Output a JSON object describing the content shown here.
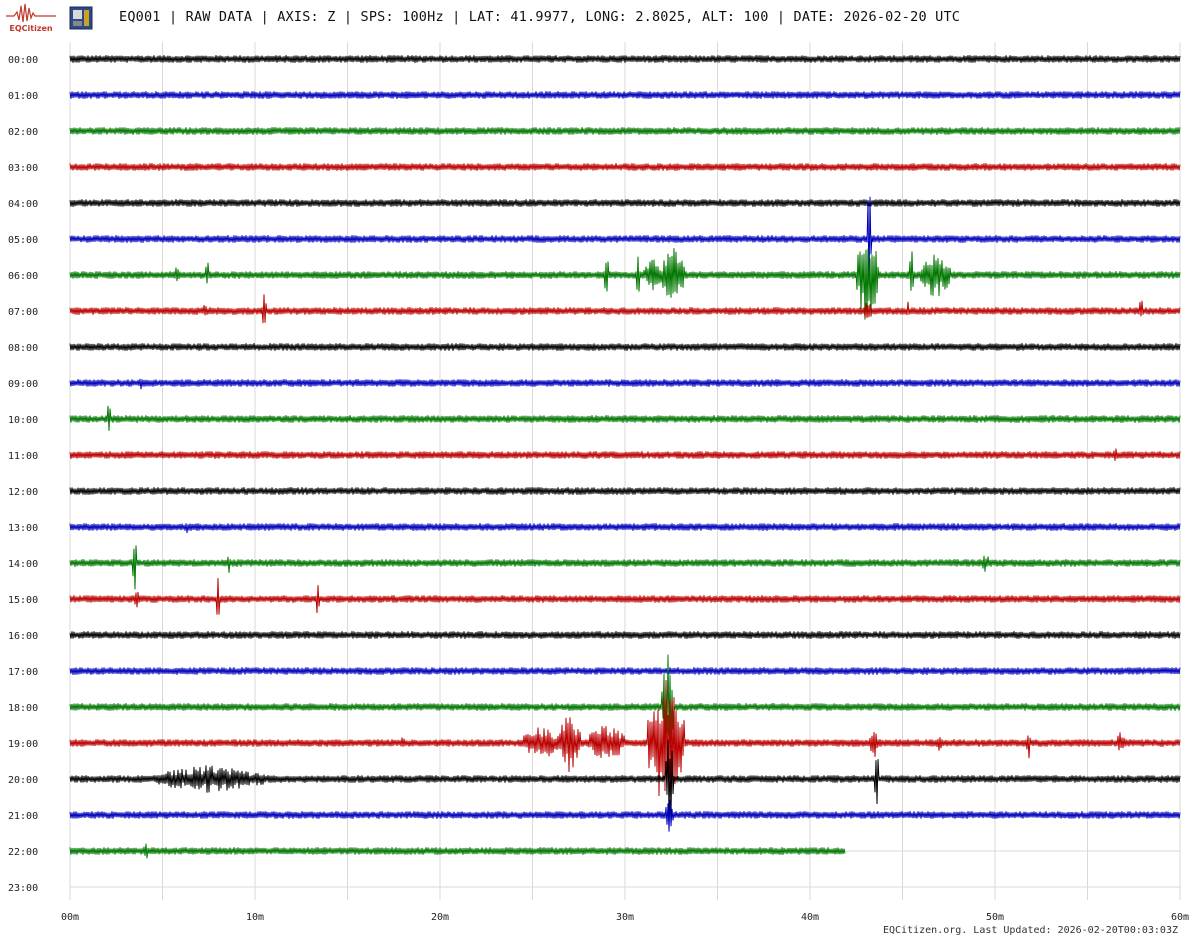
{
  "header": {
    "logo_text": "EQCitizen",
    "title": "EQ001 | RAW DATA | AXIS: Z | SPS: 100Hz | LAT: 41.9977, LONG: 2.8025, ALT: 100 | DATE: 2026-02-20 UTC"
  },
  "footer": {
    "text": "EQCitizen.org. Last Updated: 2026-02-20T00:03:03Z"
  },
  "colors": {
    "black": "#000000",
    "blue": "#0000bb",
    "green": "#007700",
    "red": "#bb0000",
    "grid": "#d9d9d9"
  },
  "chart_data": {
    "type": "line",
    "title": "",
    "xlabel": "",
    "ylabel": "",
    "x_range_minutes": [
      0,
      60
    ],
    "x_ticks": [
      "00m",
      "10m",
      "20m",
      "30m",
      "40m",
      "50m",
      "60m"
    ],
    "y_ticks": [
      "00:00",
      "01:00",
      "02:00",
      "03:00",
      "04:00",
      "05:00",
      "06:00",
      "07:00",
      "08:00",
      "09:00",
      "10:00",
      "11:00",
      "12:00",
      "13:00",
      "14:00",
      "15:00",
      "16:00",
      "17:00",
      "18:00",
      "19:00",
      "20:00",
      "21:00",
      "22:00",
      "23:00"
    ],
    "grid": true,
    "color_cycle": [
      "black",
      "blue",
      "green",
      "red"
    ],
    "series": [
      {
        "hour": "00:00",
        "end_minute": 60,
        "events": []
      },
      {
        "hour": "01:00",
        "end_minute": 60,
        "events": []
      },
      {
        "hour": "02:00",
        "end_minute": 60,
        "events": []
      },
      {
        "hour": "03:00",
        "end_minute": 60,
        "events": []
      },
      {
        "hour": "04:00",
        "end_minute": 60,
        "events": []
      },
      {
        "hour": "05:00",
        "end_minute": 60,
        "events": [
          {
            "minute": 43.2,
            "amp": 1.9,
            "dur": 0.1
          }
        ]
      },
      {
        "hour": "06:00",
        "end_minute": 60,
        "events": [
          {
            "minute": 5.8,
            "amp": 0.5,
            "dur": 0.1
          },
          {
            "minute": 7.4,
            "amp": 0.6,
            "dur": 0.1
          },
          {
            "minute": 29.0,
            "amp": 0.8,
            "dur": 0.1
          },
          {
            "minute": 30.7,
            "amp": 0.7,
            "dur": 0.1
          },
          {
            "minute": 31.5,
            "amp": 0.5,
            "dur": 0.5
          },
          {
            "minute": 32.6,
            "amp": 0.9,
            "dur": 0.6
          },
          {
            "minute": 43.1,
            "amp": 1.5,
            "dur": 0.6
          },
          {
            "minute": 45.5,
            "amp": 0.9,
            "dur": 0.1
          },
          {
            "minute": 46.8,
            "amp": 0.7,
            "dur": 0.8
          }
        ]
      },
      {
        "hour": "07:00",
        "end_minute": 60,
        "events": [
          {
            "minute": 7.3,
            "amp": 0.3,
            "dur": 0.1
          },
          {
            "minute": 10.5,
            "amp": 0.6,
            "dur": 0.1
          },
          {
            "minute": 43.1,
            "amp": 0.5,
            "dur": 0.2
          },
          {
            "minute": 45.3,
            "amp": 0.4,
            "dur": 0.1
          },
          {
            "minute": 57.9,
            "amp": 0.4,
            "dur": 0.1
          }
        ]
      },
      {
        "hour": "08:00",
        "end_minute": 60,
        "events": []
      },
      {
        "hour": "09:00",
        "end_minute": 60,
        "events": [
          {
            "minute": 3.8,
            "amp": 0.25,
            "dur": 0.1
          }
        ]
      },
      {
        "hour": "10:00",
        "end_minute": 60,
        "events": [
          {
            "minute": 2.1,
            "amp": 0.7,
            "dur": 0.1
          }
        ]
      },
      {
        "hour": "11:00",
        "end_minute": 60,
        "events": [
          {
            "minute": 56.5,
            "amp": 0.25,
            "dur": 0.1
          }
        ]
      },
      {
        "hour": "12:00",
        "end_minute": 60,
        "events": []
      },
      {
        "hour": "13:00",
        "end_minute": 60,
        "events": [
          {
            "minute": 6.3,
            "amp": 0.2,
            "dur": 0.1
          }
        ]
      },
      {
        "hour": "14:00",
        "end_minute": 60,
        "events": [
          {
            "minute": 3.5,
            "amp": 0.85,
            "dur": 0.1
          },
          {
            "minute": 8.6,
            "amp": 0.3,
            "dur": 0.1
          },
          {
            "minute": 49.5,
            "amp": 0.35,
            "dur": 0.2
          }
        ]
      },
      {
        "hour": "15:00",
        "end_minute": 60,
        "events": [
          {
            "minute": 3.6,
            "amp": 0.4,
            "dur": 0.1
          },
          {
            "minute": 8.0,
            "amp": 0.9,
            "dur": 0.1
          },
          {
            "minute": 13.4,
            "amp": 0.7,
            "dur": 0.1
          }
        ]
      },
      {
        "hour": "16:00",
        "end_minute": 60,
        "events": [
          {
            "minute": 11.2,
            "amp": 0.2,
            "dur": 0.1
          }
        ]
      },
      {
        "hour": "17:00",
        "end_minute": 60,
        "events": []
      },
      {
        "hour": "18:00",
        "end_minute": 60,
        "events": [
          {
            "minute": 32.3,
            "amp": 1.6,
            "dur": 0.3
          }
        ]
      },
      {
        "hour": "19:00",
        "end_minute": 60,
        "events": [
          {
            "minute": 18.0,
            "amp": 0.25,
            "dur": 0.1
          },
          {
            "minute": 25.5,
            "amp": 0.5,
            "dur": 1.0
          },
          {
            "minute": 27.0,
            "amp": 0.9,
            "dur": 0.6
          },
          {
            "minute": 29.0,
            "amp": 0.6,
            "dur": 1.0
          },
          {
            "minute": 32.2,
            "amp": 1.9,
            "dur": 1.0
          },
          {
            "minute": 43.5,
            "amp": 0.4,
            "dur": 0.3
          },
          {
            "minute": 47.0,
            "amp": 0.25,
            "dur": 0.2
          },
          {
            "minute": 51.8,
            "amp": 0.6,
            "dur": 0.1
          },
          {
            "minute": 56.8,
            "amp": 0.4,
            "dur": 0.2
          }
        ]
      },
      {
        "hour": "20:00",
        "end_minute": 60,
        "events": [
          {
            "minute": 7.5,
            "amp": 0.4,
            "dur": 3.0
          },
          {
            "minute": 32.4,
            "amp": 1.5,
            "dur": 0.2
          },
          {
            "minute": 43.6,
            "amp": 1.4,
            "dur": 0.1
          }
        ]
      },
      {
        "hour": "21:00",
        "end_minute": 60,
        "events": [
          {
            "minute": 32.4,
            "amp": 0.5,
            "dur": 0.2
          }
        ]
      },
      {
        "hour": "22:00",
        "end_minute": 41.9,
        "events": [
          {
            "minute": 4.1,
            "amp": 0.4,
            "dur": 0.1
          }
        ]
      },
      {
        "hour": "23:00",
        "end_minute": 0,
        "events": []
      }
    ]
  }
}
